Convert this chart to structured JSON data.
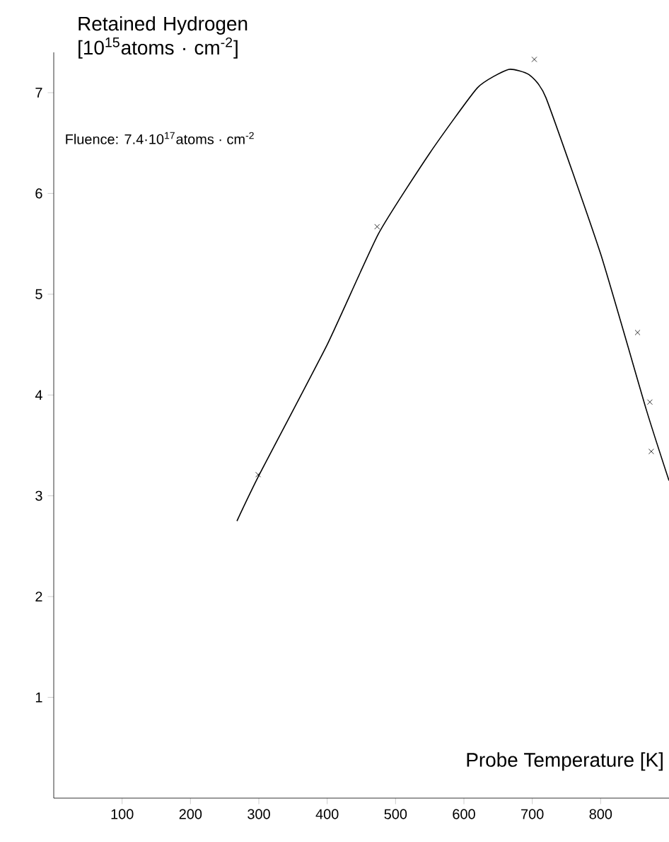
{
  "chart_data": {
    "type": "scatter",
    "xlabel": "Probe Temperature [K]",
    "ylabel": "Retained Hydrogen [10$^{15}$atoms · cm$^{-2}$]",
    "annotations": [
      "Fluence: 7.4·10$^{17}$atoms · cm$^{-2}$"
    ],
    "xlim": [
      0,
      900
    ],
    "ylim": [
      0,
      7.4
    ],
    "xticks": [
      100,
      200,
      300,
      400,
      500,
      600,
      700,
      800
    ],
    "yticks": [
      1,
      2,
      3,
      4,
      5,
      6,
      7
    ],
    "series": [
      {
        "color": "#000000",
        "marker": "cross",
        "x": [
          299,
          473,
          703,
          854,
          872,
          874
        ],
        "values": [
          3.21,
          5.67,
          7.33,
          4.62,
          3.93,
          3.44
        ]
      },
      {
        "type": "line",
        "color": "#000000",
        "marker": "none",
        "line_style": "solid",
        "x": [
          268,
          300,
          400,
          475,
          550,
          620,
          665,
          695,
          720,
          800,
          867,
          900
        ],
        "values": [
          2.75,
          3.2,
          4.5,
          5.6,
          6.4,
          7.05,
          7.23,
          7.18,
          6.95,
          5.4,
          3.85,
          3.15
        ]
      }
    ]
  }
}
